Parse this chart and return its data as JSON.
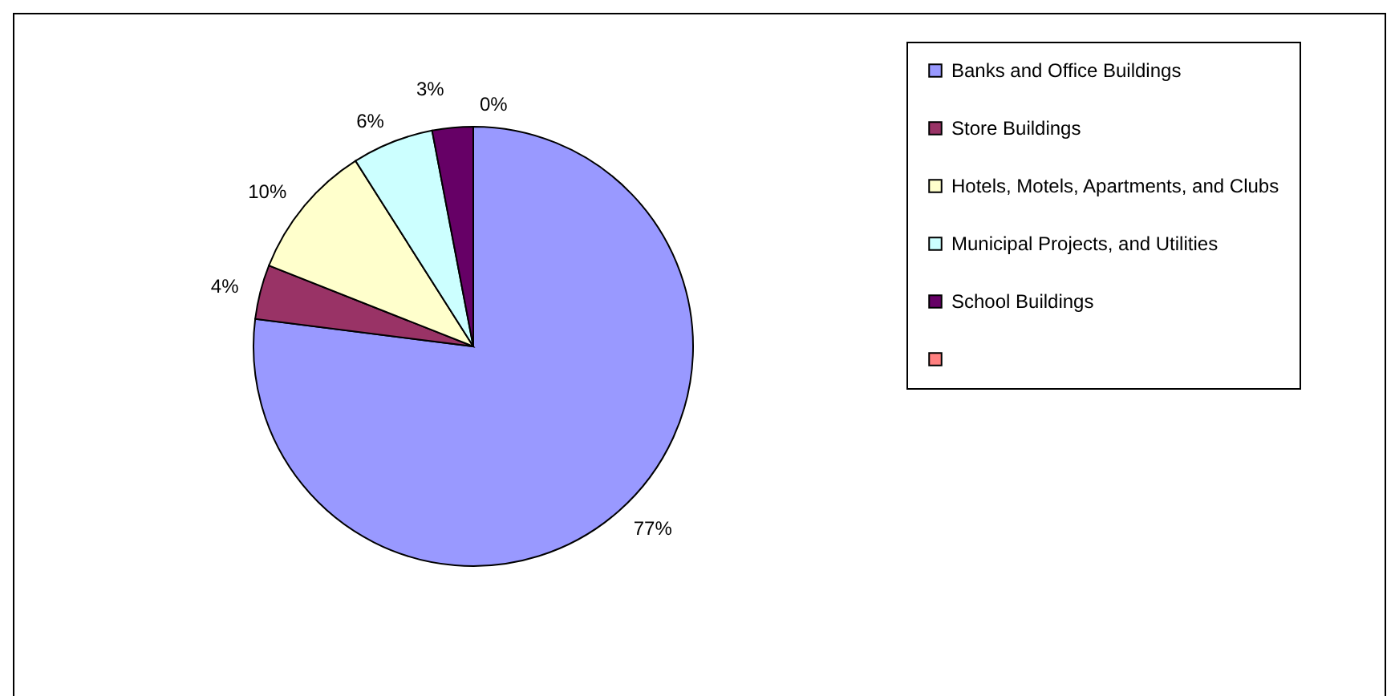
{
  "chart_data": {
    "type": "pie",
    "categories": [
      "Banks and Office Buildings",
      "Store Buildings",
      "Hotels, Motels, Apartments, and Clubs",
      "Municipal Projects, and Utilities",
      "School Buildings",
      null
    ],
    "values": [
      77,
      4,
      10,
      6,
      3,
      0
    ],
    "colors": [
      "#9999ff",
      "#993366",
      "#ffffcc",
      "#ccffff",
      "#660066",
      "#ff8080"
    ],
    "value_labels": [
      "77%",
      "4%",
      "10%",
      "6%",
      "3%",
      "0%"
    ],
    "legend": "right"
  }
}
